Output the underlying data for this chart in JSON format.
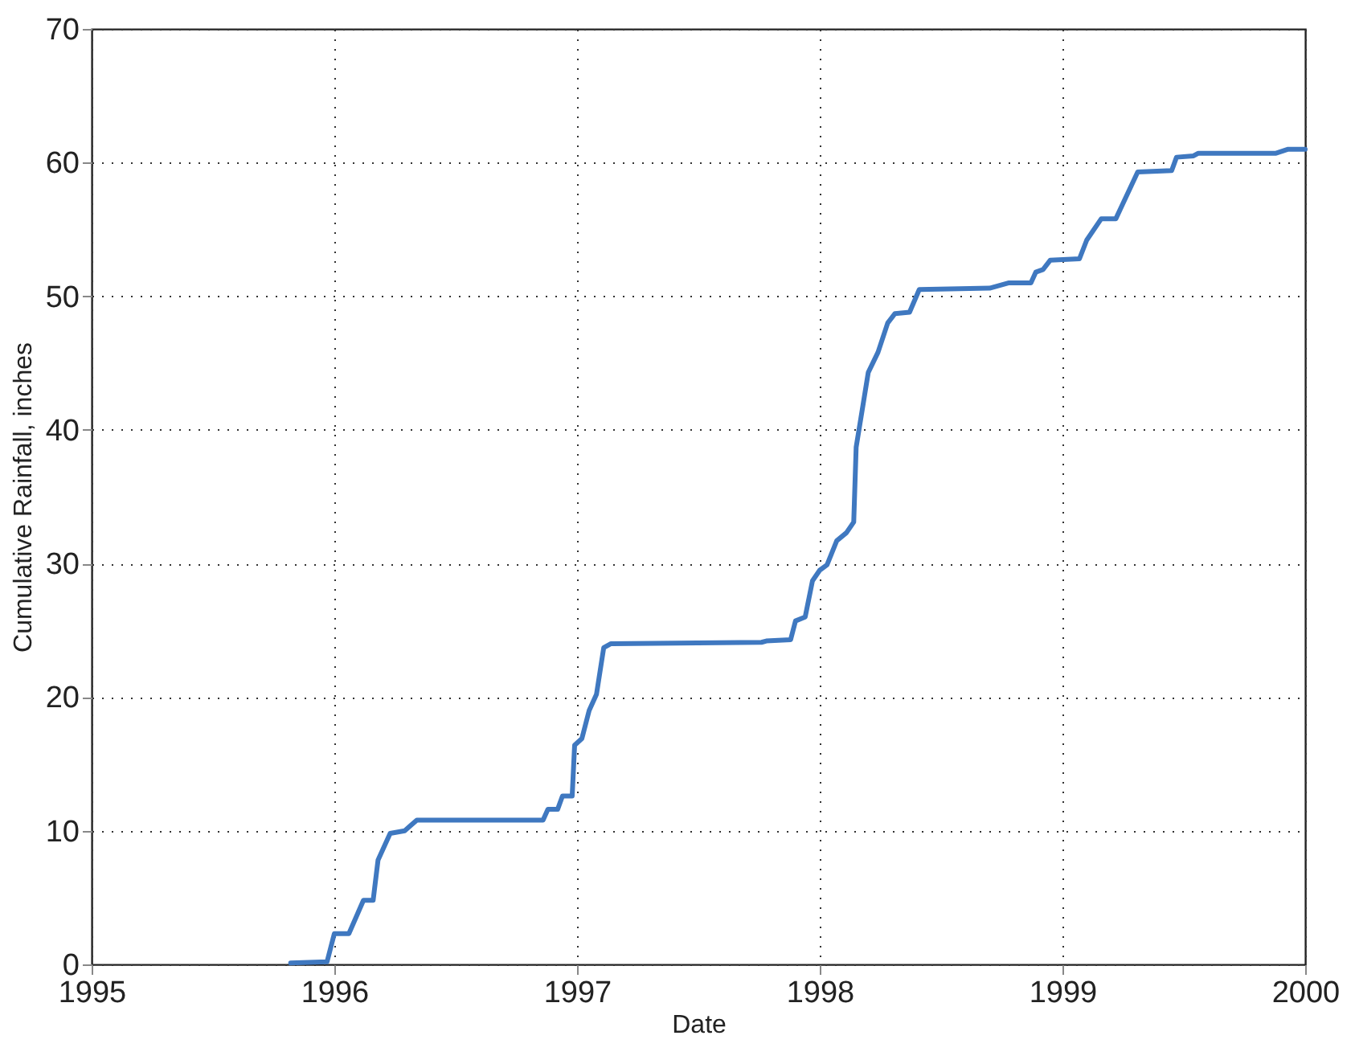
{
  "chart_data": {
    "type": "line",
    "xlabel": "Date",
    "ylabel": "Cumulative Rainfall, inches",
    "x": [
      1995.82,
      1995.97,
      1996.0,
      1996.06,
      1996.12,
      1996.16,
      1996.18,
      1996.23,
      1996.29,
      1996.34,
      1996.86,
      1996.88,
      1996.92,
      1996.94,
      1996.98,
      1996.99,
      1997.02,
      1997.05,
      1997.08,
      1997.11,
      1997.14,
      1997.76,
      1997.78,
      1997.88,
      1997.9,
      1997.94,
      1997.97,
      1998.0,
      1998.03,
      1998.07,
      1998.11,
      1998.14,
      1998.15,
      1998.2,
      1998.24,
      1998.28,
      1998.31,
      1998.37,
      1998.41,
      1998.7,
      1998.78,
      1998.87,
      1998.89,
      1998.92,
      1998.95,
      1999.07,
      1999.1,
      1999.16,
      1999.22,
      1999.31,
      1999.45,
      1999.47,
      1999.54,
      1999.56,
      1999.88,
      1999.93,
      2000.0
    ],
    "series": [
      {
        "color": "#3f78c0",
        "values": [
          0.1,
          0.2,
          2.3,
          2.3,
          4.8,
          4.8,
          7.8,
          9.8,
          10.0,
          10.8,
          10.8,
          11.6,
          11.6,
          12.6,
          12.6,
          16.4,
          16.9,
          19.0,
          20.2,
          23.7,
          24.0,
          24.1,
          24.2,
          24.3,
          25.7,
          26.0,
          28.7,
          29.5,
          29.9,
          31.7,
          32.3,
          33.1,
          38.7,
          44.3,
          45.8,
          48.0,
          48.7,
          48.8,
          50.5,
          50.6,
          51.0,
          51.0,
          51.8,
          52.0,
          52.7,
          52.8,
          54.2,
          55.8,
          55.8,
          59.3,
          59.4,
          60.4,
          60.5,
          60.7,
          60.7,
          61.0,
          61.0
        ]
      }
    ],
    "xlim": [
      1995,
      2000
    ],
    "xticks": [
      1995,
      1996,
      1997,
      1998,
      1999,
      2000
    ],
    "ylim": [
      0,
      70
    ],
    "yticks": [
      0,
      10,
      20,
      30,
      40,
      50,
      60,
      70
    ],
    "grid": true,
    "line_style": "solid"
  }
}
